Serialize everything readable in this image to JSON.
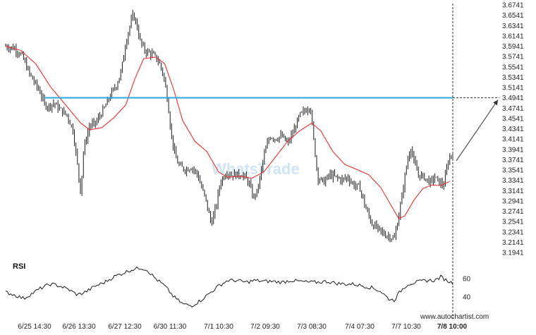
{
  "chart_data": [
    {
      "type": "candlestick",
      "y_ticks": [
        "3.6741",
        "3.6541",
        "3.6341",
        "3.6141",
        "3.5941",
        "3.5741",
        "3.5541",
        "3.5341",
        "3.5141",
        "3.4941",
        "3.4741",
        "3.4541",
        "3.4341",
        "3.4141",
        "3.3941",
        "3.3741",
        "3.3541",
        "3.3341",
        "3.3141",
        "3.2941",
        "3.2741",
        "3.2541",
        "3.2341",
        "3.2141",
        "3.1941"
      ],
      "x_ticks": [
        "6/25 14:30",
        "6/26 13:30",
        "6/27 12:30",
        "6/30 11:30",
        "7/1 10:30",
        "7/2 09:30",
        "7/3 08:30",
        "7/4 07:30",
        "7/7 10:30",
        "7/8 10:00"
      ],
      "ylim": [
        3.1941,
        3.6741
      ],
      "resistance_level": 3.4941,
      "forecast_target": 3.4941,
      "price_path": [
        [
          0,
          3.594
        ],
        [
          0.6,
          3.59
        ],
        [
          1.1,
          3.575
        ],
        [
          1.6,
          3.54
        ],
        [
          2.0,
          3.52
        ],
        [
          2.3,
          3.505
        ],
        [
          2.6,
          3.48
        ],
        [
          2.9,
          3.478
        ],
        [
          3.2,
          3.484
        ],
        [
          3.6,
          3.472
        ],
        [
          4.1,
          3.46
        ],
        [
          4.5,
          3.43
        ],
        [
          4.8,
          3.36
        ],
        [
          5.0,
          3.31
        ],
        [
          5.2,
          3.395
        ],
        [
          5.6,
          3.44
        ],
        [
          6.0,
          3.445
        ],
        [
          6.6,
          3.475
        ],
        [
          7.0,
          3.5
        ],
        [
          7.4,
          3.52
        ],
        [
          7.7,
          3.545
        ],
        [
          8.0,
          3.6
        ],
        [
          8.2,
          3.625
        ],
        [
          8.5,
          3.655
        ],
        [
          8.7,
          3.64
        ],
        [
          9.0,
          3.6
        ],
        [
          9.3,
          3.585
        ],
        [
          9.8,
          3.578
        ],
        [
          10.2,
          3.565
        ],
        [
          10.5,
          3.54
        ],
        [
          10.8,
          3.49
        ],
        [
          11.0,
          3.43
        ],
        [
          11.3,
          3.38
        ],
        [
          11.6,
          3.36
        ],
        [
          12.0,
          3.355
        ],
        [
          12.4,
          3.36
        ],
        [
          12.8,
          3.345
        ],
        [
          13.0,
          3.325
        ],
        [
          13.3,
          3.3
        ],
        [
          13.7,
          3.25
        ],
        [
          14.0,
          3.28
        ],
        [
          14.3,
          3.33
        ],
        [
          14.7,
          3.35
        ],
        [
          15.0,
          3.345
        ],
        [
          15.4,
          3.345
        ],
        [
          15.8,
          3.345
        ],
        [
          16.2,
          3.33
        ],
        [
          16.5,
          3.3
        ],
        [
          16.8,
          3.315
        ],
        [
          17.2,
          3.38
        ],
        [
          17.6,
          3.42
        ],
        [
          18.0,
          3.415
        ],
        [
          18.4,
          3.42
        ],
        [
          18.8,
          3.405
        ],
        [
          19.2,
          3.43
        ],
        [
          19.6,
          3.46
        ],
        [
          20.0,
          3.47
        ],
        [
          20.3,
          3.48
        ],
        [
          20.5,
          3.42
        ],
        [
          20.8,
          3.34
        ],
        [
          21.2,
          3.33
        ],
        [
          21.6,
          3.345
        ],
        [
          22.0,
          3.34
        ],
        [
          22.4,
          3.335
        ],
        [
          22.8,
          3.34
        ],
        [
          23.2,
          3.325
        ],
        [
          23.6,
          3.32
        ],
        [
          24.0,
          3.28
        ],
        [
          24.4,
          3.25
        ],
        [
          24.8,
          3.24
        ],
        [
          25.2,
          3.23
        ],
        [
          25.6,
          3.225
        ],
        [
          25.9,
          3.22
        ],
        [
          26.1,
          3.25
        ],
        [
          26.4,
          3.3
        ],
        [
          26.7,
          3.36
        ],
        [
          27.0,
          3.4
        ],
        [
          27.2,
          3.37
        ],
        [
          27.5,
          3.345
        ],
        [
          27.9,
          3.34
        ],
        [
          28.3,
          3.33
        ],
        [
          28.6,
          3.34
        ],
        [
          28.9,
          3.33
        ],
        [
          29.2,
          3.325
        ],
        [
          29.5,
          3.372
        ],
        [
          29.8,
          3.39
        ]
      ],
      "ma_path": [
        [
          0,
          3.594
        ],
        [
          1.0,
          3.586
        ],
        [
          2.0,
          3.56
        ],
        [
          3.0,
          3.515
        ],
        [
          4.0,
          3.48
        ],
        [
          5.0,
          3.445
        ],
        [
          5.6,
          3.432
        ],
        [
          6.4,
          3.436
        ],
        [
          7.2,
          3.455
        ],
        [
          8.0,
          3.48
        ],
        [
          8.6,
          3.53
        ],
        [
          9.2,
          3.57
        ],
        [
          10.0,
          3.573
        ],
        [
          10.6,
          3.56
        ],
        [
          11.2,
          3.51
        ],
        [
          11.8,
          3.45
        ],
        [
          12.6,
          3.41
        ],
        [
          13.4,
          3.39
        ],
        [
          14.2,
          3.35
        ],
        [
          14.8,
          3.34
        ],
        [
          15.6,
          3.342
        ],
        [
          16.4,
          3.338
        ],
        [
          17.2,
          3.35
        ],
        [
          18.0,
          3.38
        ],
        [
          18.8,
          3.41
        ],
        [
          19.6,
          3.43
        ],
        [
          20.4,
          3.445
        ],
        [
          21.0,
          3.43
        ],
        [
          21.8,
          3.39
        ],
        [
          22.6,
          3.365
        ],
        [
          23.4,
          3.355
        ],
        [
          24.2,
          3.345
        ],
        [
          25.0,
          3.32
        ],
        [
          25.6,
          3.29
        ],
        [
          26.2,
          3.26
        ],
        [
          26.6,
          3.265
        ],
        [
          27.2,
          3.295
        ],
        [
          27.8,
          3.318
        ],
        [
          28.4,
          3.325
        ],
        [
          29.0,
          3.324
        ],
        [
          29.6,
          3.332
        ]
      ]
    },
    {
      "type": "line",
      "title": "RSI",
      "y_ticks": [
        "60",
        "40"
      ],
      "ylim": [
        25,
        78
      ],
      "values": [
        [
          0,
          45
        ],
        [
          0.6,
          42
        ],
        [
          1.2,
          38
        ],
        [
          1.8,
          44
        ],
        [
          2.4,
          50
        ],
        [
          3.0,
          54
        ],
        [
          3.6,
          52
        ],
        [
          4.2,
          48
        ],
        [
          4.8,
          42
        ],
        [
          5.4,
          46
        ],
        [
          6.0,
          52
        ],
        [
          6.6,
          56
        ],
        [
          7.2,
          62
        ],
        [
          7.8,
          66
        ],
        [
          8.4,
          70
        ],
        [
          9.0,
          72
        ],
        [
          9.4,
          70
        ],
        [
          10.0,
          60
        ],
        [
          10.6,
          52
        ],
        [
          11.2,
          40
        ],
        [
          11.8,
          32
        ],
        [
          12.4,
          30
        ],
        [
          13.0,
          36
        ],
        [
          13.6,
          44
        ],
        [
          14.2,
          52
        ],
        [
          14.8,
          58
        ],
        [
          15.4,
          58
        ],
        [
          16.0,
          56
        ],
        [
          16.6,
          58
        ],
        [
          17.2,
          57
        ],
        [
          17.8,
          57
        ],
        [
          18.4,
          56
        ],
        [
          19.0,
          58
        ],
        [
          19.6,
          57
        ],
        [
          20.2,
          56
        ],
        [
          20.8,
          56
        ],
        [
          21.4,
          57
        ],
        [
          22.0,
          55
        ],
        [
          22.6,
          54
        ],
        [
          23.2,
          54
        ],
        [
          23.8,
          52
        ],
        [
          24.4,
          50
        ],
        [
          25.0,
          46
        ],
        [
          25.5,
          38
        ],
        [
          25.9,
          36
        ],
        [
          26.3,
          46
        ],
        [
          26.8,
          54
        ],
        [
          27.4,
          56
        ],
        [
          28.0,
          58
        ],
        [
          28.6,
          58
        ],
        [
          29.0,
          62
        ],
        [
          29.4,
          58
        ],
        [
          29.8,
          55
        ]
      ]
    }
  ],
  "watermark_logo": "WhatsTrade",
  "site_label": "www.autochartist.com",
  "colors": {
    "price": "#1a1a1a",
    "ma": "#e8302c",
    "resistance": "#2aa8e0",
    "rsi": "#1a1a1a",
    "vline": "#333333",
    "arrow": "#333333",
    "watermark": "#cfe4f4"
  }
}
